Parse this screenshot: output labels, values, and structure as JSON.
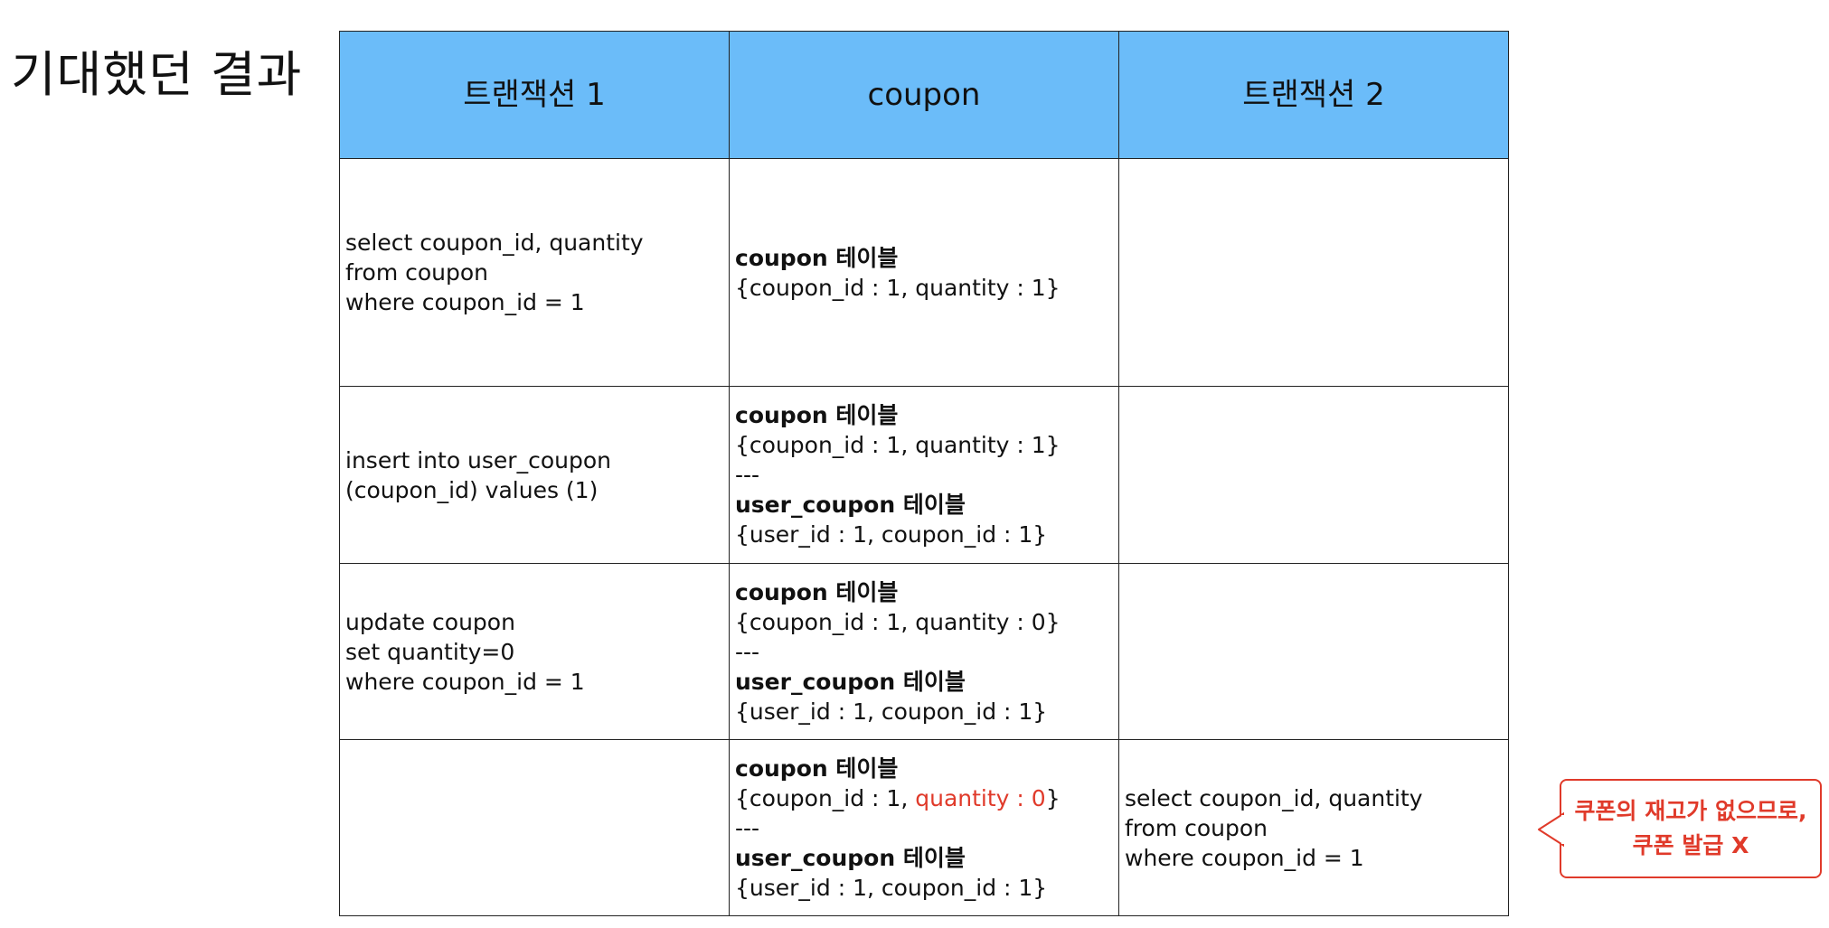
{
  "title": "기대했던 결과",
  "header": {
    "col1": "트랜잭션 1",
    "col2": "coupon",
    "col3": "트랜잭션 2"
  },
  "rows": [
    {
      "tx1": [
        "select coupon_id, quantity",
        "from coupon",
        "where coupon_id = 1"
      ],
      "coupon": {
        "table1_name": "coupon 테이블",
        "table1_data": "{coupon_id : 1, quantity : 1}"
      },
      "tx2": []
    },
    {
      "tx1": [
        "insert into user_coupon",
        "(coupon_id) values (1)"
      ],
      "coupon": {
        "table1_name": "coupon 테이블",
        "table1_data": "{coupon_id : 1, quantity : 1}",
        "separator": "---",
        "table2_name": "user_coupon 테이블",
        "table2_data": "{user_id : 1, coupon_id : 1}"
      },
      "tx2": []
    },
    {
      "tx1": [
        "update coupon",
        "set quantity=0",
        "where coupon_id = 1"
      ],
      "coupon": {
        "table1_name": "coupon 테이블",
        "table1_data": "{coupon_id : 1, quantity : 0}",
        "separator": "---",
        "table2_name": "user_coupon 테이블",
        "table2_data": "{user_id : 1, coupon_id : 1}"
      },
      "tx2": []
    },
    {
      "tx1": [],
      "coupon": {
        "table1_name": "coupon 테이블",
        "table1_data_prefix": "{coupon_id : 1, ",
        "table1_data_highlight": "quantity : 0",
        "table1_data_suffix": "}",
        "separator": "---",
        "table2_name": "user_coupon 테이블",
        "table2_data": "{user_id : 1, coupon_id : 1}"
      },
      "tx2": [
        "select coupon_id, quantity",
        "from coupon",
        "where coupon_id = 1"
      ]
    }
  ],
  "callout": {
    "line1": "쿠폰의 재고가 없으므로,",
    "line2": "쿠폰 발급 X"
  },
  "colors": {
    "header_bg": "#6bbcf9",
    "highlight": "#e03a2a"
  }
}
